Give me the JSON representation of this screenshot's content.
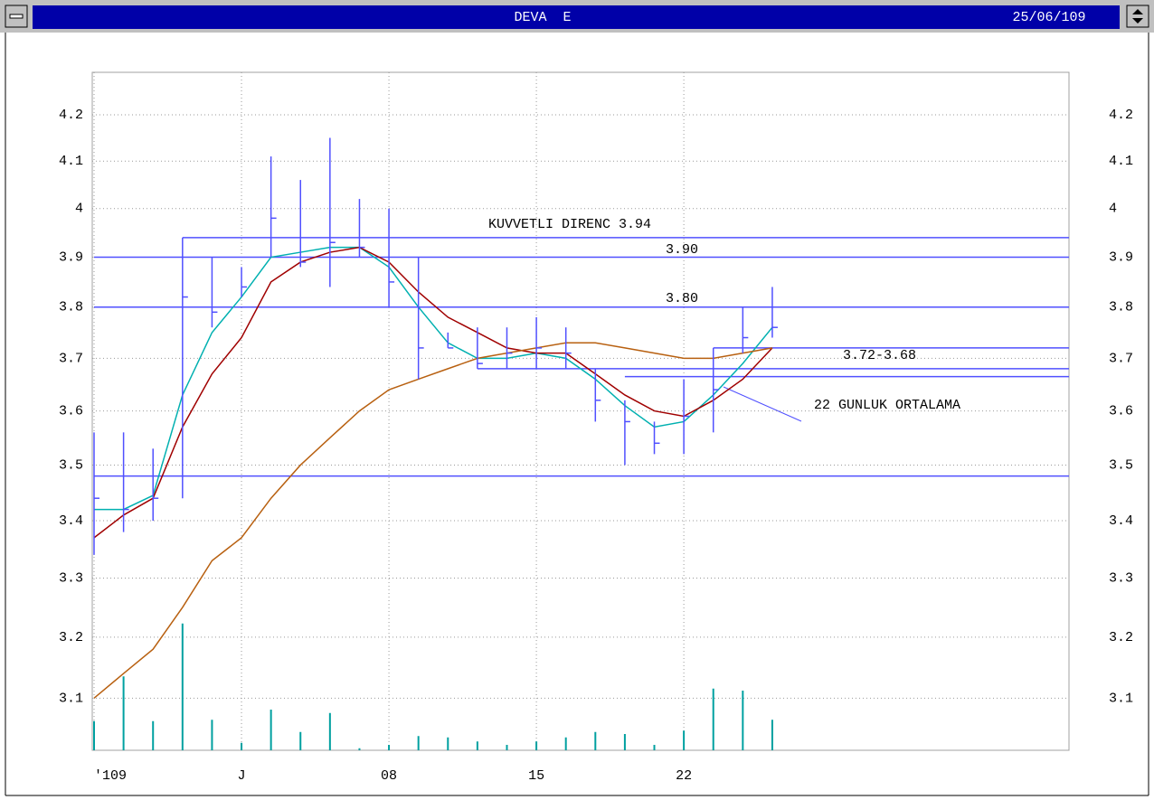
{
  "window": {
    "title": "DEVA  E",
    "date": "25/06/109"
  },
  "chart_data": {
    "type": "ohlc",
    "log_scale": true,
    "grid": true,
    "xlim": [
      0,
      33
    ],
    "xticks": [
      {
        "value": 0,
        "label": "'109"
      },
      {
        "value": 5,
        "label": "J"
      },
      {
        "value": 10,
        "label": "08"
      },
      {
        "value": 15,
        "label": "15"
      },
      {
        "value": 20,
        "label": "22"
      }
    ],
    "ylim": [
      3.017,
      4.294
    ],
    "yticks": [
      3.1,
      3.2,
      3.3,
      3.4,
      3.5,
      3.6,
      3.7,
      3.8,
      3.9,
      4.0,
      4.1,
      4.2
    ],
    "y2lim": [
      0,
      100
    ],
    "ohlc": {
      "color": "#5050ff",
      "high": [
        3.56,
        3.56,
        3.53,
        3.94,
        3.9,
        3.88,
        4.11,
        4.06,
        4.15,
        4.02,
        4.0,
        3.9,
        3.75,
        3.76,
        3.76,
        3.78,
        3.76,
        3.68,
        3.62,
        3.58,
        3.66,
        3.72,
        3.8,
        3.84
      ],
      "low": [
        3.34,
        3.38,
        3.4,
        3.44,
        3.76,
        3.82,
        3.9,
        3.88,
        3.84,
        3.9,
        3.8,
        3.66,
        3.72,
        3.68,
        3.68,
        3.68,
        3.68,
        3.58,
        3.5,
        3.52,
        3.52,
        3.56,
        3.71,
        3.74
      ],
      "close": [
        3.44,
        3.42,
        3.44,
        3.82,
        3.79,
        3.84,
        3.98,
        3.89,
        3.93,
        3.92,
        3.85,
        3.72,
        3.72,
        3.69,
        3.71,
        3.72,
        3.71,
        3.62,
        3.58,
        3.54,
        3.59,
        3.64,
        3.74,
        3.76
      ]
    },
    "ma": [
      {
        "color": "#00b0b0",
        "values": [
          3.42,
          3.42,
          3.445,
          3.63,
          3.75,
          3.82,
          3.9,
          3.91,
          3.92,
          3.92,
          3.88,
          3.8,
          3.73,
          3.7,
          3.7,
          3.71,
          3.7,
          3.66,
          3.61,
          3.57,
          3.58,
          3.63,
          3.69,
          3.76
        ]
      },
      {
        "color": "#a00000",
        "values": [
          3.37,
          3.41,
          3.44,
          3.57,
          3.67,
          3.74,
          3.85,
          3.89,
          3.91,
          3.92,
          3.89,
          3.83,
          3.78,
          3.75,
          3.72,
          3.71,
          3.71,
          3.67,
          3.63,
          3.6,
          3.59,
          3.62,
          3.66,
          3.72
        ]
      },
      {
        "color": "#b86010",
        "values": [
          3.1,
          3.14,
          3.18,
          3.25,
          3.33,
          3.37,
          3.44,
          3.5,
          3.55,
          3.6,
          3.64,
          3.66,
          3.68,
          3.7,
          3.71,
          3.72,
          3.73,
          3.73,
          3.72,
          3.71,
          3.7,
          3.7,
          3.71,
          3.72
        ]
      }
    ],
    "volume": {
      "color": "#00a0a0",
      "axis": "y2",
      "values": [
        4.3,
        10.9,
        4.3,
        18.7,
        4.5,
        1.1,
        6,
        2.7,
        5.5,
        0.3,
        0.8,
        2.1,
        1.9,
        1.3,
        0.8,
        1.3,
        1.9,
        2.7,
        2.4,
        0.8,
        2.9,
        9.1,
        8.8,
        4.5
      ]
    },
    "levels": [
      {
        "value": 3.94,
        "start": 3
      },
      {
        "value": 3.9,
        "start": 0
      },
      {
        "value": 3.8,
        "start": 0
      },
      {
        "value": 3.72,
        "start": 21
      },
      {
        "value": 3.68,
        "start": 13
      },
      {
        "value": 3.665,
        "start": 18
      },
      {
        "value": 3.48,
        "start": 0
      }
    ],
    "level_color": "#5050ff",
    "annotations": [
      "KUVVETLI DIRENC 3.94",
      "3.90",
      "3.80",
      "3.72-3.68",
      "22 GUNLUK ORTALAMA"
    ]
  }
}
